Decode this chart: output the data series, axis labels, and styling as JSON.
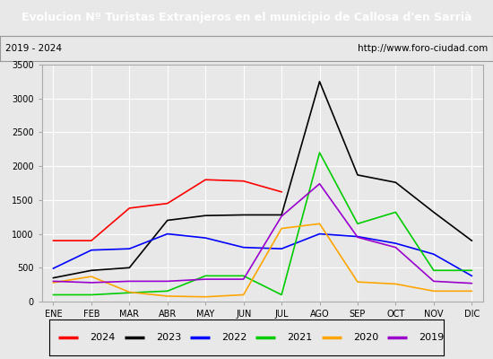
{
  "title": "Evolucion Nº Turistas Extranjeros en el municipio de Callosa d'en Sarrià",
  "subtitle_left": "2019 - 2024",
  "subtitle_right": "http://www.foro-ciudad.com",
  "title_bg_color": "#4472c4",
  "title_fg_color": "#ffffff",
  "months": [
    "ENE",
    "FEB",
    "MAR",
    "ABR",
    "MAY",
    "JUN",
    "JUL",
    "AGO",
    "SEP",
    "OCT",
    "NOV",
    "DIC"
  ],
  "ylim": [
    0,
    3500
  ],
  "yticks": [
    0,
    500,
    1000,
    1500,
    2000,
    2500,
    3000,
    3500
  ],
  "series": {
    "2024": {
      "color": "#ff0000",
      "values": [
        900,
        900,
        1380,
        1450,
        1800,
        1780,
        1620,
        null,
        null,
        null,
        null,
        null
      ]
    },
    "2023": {
      "color": "#000000",
      "values": [
        350,
        460,
        500,
        1200,
        1270,
        1280,
        1280,
        3250,
        1870,
        1760,
        1320,
        900
      ]
    },
    "2022": {
      "color": "#0000ff",
      "values": [
        490,
        760,
        780,
        1000,
        940,
        800,
        780,
        1000,
        960,
        860,
        700,
        380
      ]
    },
    "2021": {
      "color": "#00cc00",
      "values": [
        100,
        100,
        130,
        155,
        380,
        380,
        100,
        2200,
        1150,
        1320,
        460,
        460
      ]
    },
    "2020": {
      "color": "#ffa500",
      "values": [
        280,
        370,
        140,
        80,
        70,
        100,
        1080,
        1150,
        290,
        260,
        155,
        155
      ]
    },
    "2019": {
      "color": "#9900cc",
      "values": [
        300,
        280,
        300,
        300,
        330,
        330,
        1260,
        1740,
        950,
        800,
        300,
        270
      ]
    }
  },
  "legend_order": [
    "2024",
    "2023",
    "2022",
    "2021",
    "2020",
    "2019"
  ],
  "outer_bg_color": "#e8e8e8",
  "plot_bg_color": "#e8e8e8",
  "grid_color": "#ffffff"
}
